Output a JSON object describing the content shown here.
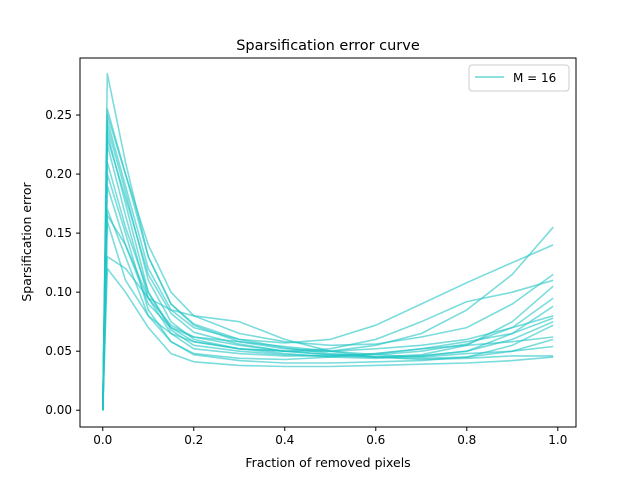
{
  "chart_data": {
    "type": "line",
    "title": "Sparsification error curve",
    "xlabel": "Fraction of removed pixels",
    "ylabel": "Sparsification error",
    "xlim": [
      -0.05,
      1.04
    ],
    "ylim": [
      -0.0142,
      0.2983
    ],
    "x_ticks": [
      0.0,
      0.2,
      0.4,
      0.6,
      0.8,
      1.0
    ],
    "x_tick_labels": [
      "0.0",
      "0.2",
      "0.4",
      "0.6",
      "0.8",
      "1.0"
    ],
    "y_ticks": [
      0.0,
      0.05,
      0.1,
      0.15,
      0.2,
      0.25
    ],
    "y_tick_labels": [
      "0.00",
      "0.05",
      "0.10",
      "0.15",
      "0.20",
      "0.25"
    ],
    "grid": false,
    "legend": {
      "position": "top-right",
      "entries": [
        "M = 16"
      ]
    },
    "series_color": "#22c4c4",
    "series_opacity": 0.6,
    "x": [
      0.0,
      0.01,
      0.05,
      0.1,
      0.15,
      0.2,
      0.3,
      0.4,
      0.5,
      0.6,
      0.7,
      0.8,
      0.9,
      0.99
    ],
    "series": [
      {
        "name": "M = 16",
        "values": [
          0.0,
          0.285,
          0.21,
          0.13,
          0.09,
          0.072,
          0.058,
          0.052,
          0.05,
          0.055,
          0.065,
          0.085,
          0.115,
          0.155
        ]
      },
      {
        "name": "M = 16",
        "values": [
          0.0,
          0.25,
          0.2,
          0.14,
          0.1,
          0.08,
          0.065,
          0.058,
          0.055,
          0.056,
          0.062,
          0.07,
          0.09,
          0.115
        ]
      },
      {
        "name": "M = 16",
        "values": [
          0.0,
          0.245,
          0.19,
          0.12,
          0.085,
          0.07,
          0.06,
          0.057,
          0.06,
          0.072,
          0.09,
          0.108,
          0.125,
          0.14
        ]
      },
      {
        "name": "M = 16",
        "values": [
          0.0,
          0.24,
          0.185,
          0.11,
          0.075,
          0.06,
          0.052,
          0.048,
          0.045,
          0.044,
          0.046,
          0.05,
          0.065,
          0.088
        ]
      },
      {
        "name": "M = 16",
        "values": [
          0.0,
          0.235,
          0.175,
          0.1,
          0.068,
          0.055,
          0.05,
          0.047,
          0.046,
          0.045,
          0.047,
          0.055,
          0.075,
          0.105
        ]
      },
      {
        "name": "M = 16",
        "values": [
          0.0,
          0.225,
          0.165,
          0.095,
          0.065,
          0.052,
          0.048,
          0.046,
          0.046,
          0.048,
          0.052,
          0.058,
          0.065,
          0.078
        ]
      },
      {
        "name": "M = 16",
        "values": [
          0.0,
          0.21,
          0.155,
          0.1,
          0.07,
          0.058,
          0.052,
          0.05,
          0.052,
          0.06,
          0.075,
          0.092,
          0.1,
          0.11
        ]
      },
      {
        "name": "M = 16",
        "values": [
          0.0,
          0.2,
          0.15,
          0.085,
          0.058,
          0.047,
          0.042,
          0.04,
          0.04,
          0.041,
          0.042,
          0.045,
          0.055,
          0.072
        ]
      },
      {
        "name": "M = 16",
        "values": [
          0.0,
          0.19,
          0.14,
          0.09,
          0.07,
          0.062,
          0.058,
          0.054,
          0.05,
          0.047,
          0.045,
          0.048,
          0.05,
          0.054
        ]
      },
      {
        "name": "M = 16",
        "values": [
          0.0,
          0.17,
          0.13,
          0.08,
          0.058,
          0.048,
          0.044,
          0.043,
          0.045,
          0.048,
          0.052,
          0.055,
          0.058,
          0.062
        ]
      },
      {
        "name": "M = 16",
        "values": [
          0.0,
          0.165,
          0.14,
          0.095,
          0.072,
          0.062,
          0.055,
          0.05,
          0.047,
          0.045,
          0.044,
          0.045,
          0.05,
          0.06
        ]
      },
      {
        "name": "M = 16",
        "values": [
          0.0,
          0.16,
          0.11,
          0.08,
          0.065,
          0.058,
          0.052,
          0.05,
          0.05,
          0.052,
          0.055,
          0.06,
          0.07,
          0.08
        ]
      },
      {
        "name": "M = 16",
        "values": [
          0.0,
          0.13,
          0.12,
          0.095,
          0.085,
          0.08,
          0.075,
          0.06,
          0.05,
          0.045,
          0.043,
          0.044,
          0.046,
          0.046
        ]
      },
      {
        "name": "M = 16",
        "values": [
          0.0,
          0.12,
          0.1,
          0.07,
          0.048,
          0.041,
          0.038,
          0.037,
          0.037,
          0.038,
          0.039,
          0.04,
          0.042,
          0.045
        ]
      },
      {
        "name": "M = 16",
        "values": [
          0.0,
          0.255,
          0.2,
          0.13,
          0.09,
          0.073,
          0.06,
          0.053,
          0.048,
          0.045,
          0.046,
          0.05,
          0.06,
          0.075
        ]
      },
      {
        "name": "M = 16",
        "values": [
          0.0,
          0.23,
          0.18,
          0.115,
          0.082,
          0.066,
          0.056,
          0.05,
          0.047,
          0.047,
          0.05,
          0.056,
          0.07,
          0.095
        ]
      }
    ]
  }
}
